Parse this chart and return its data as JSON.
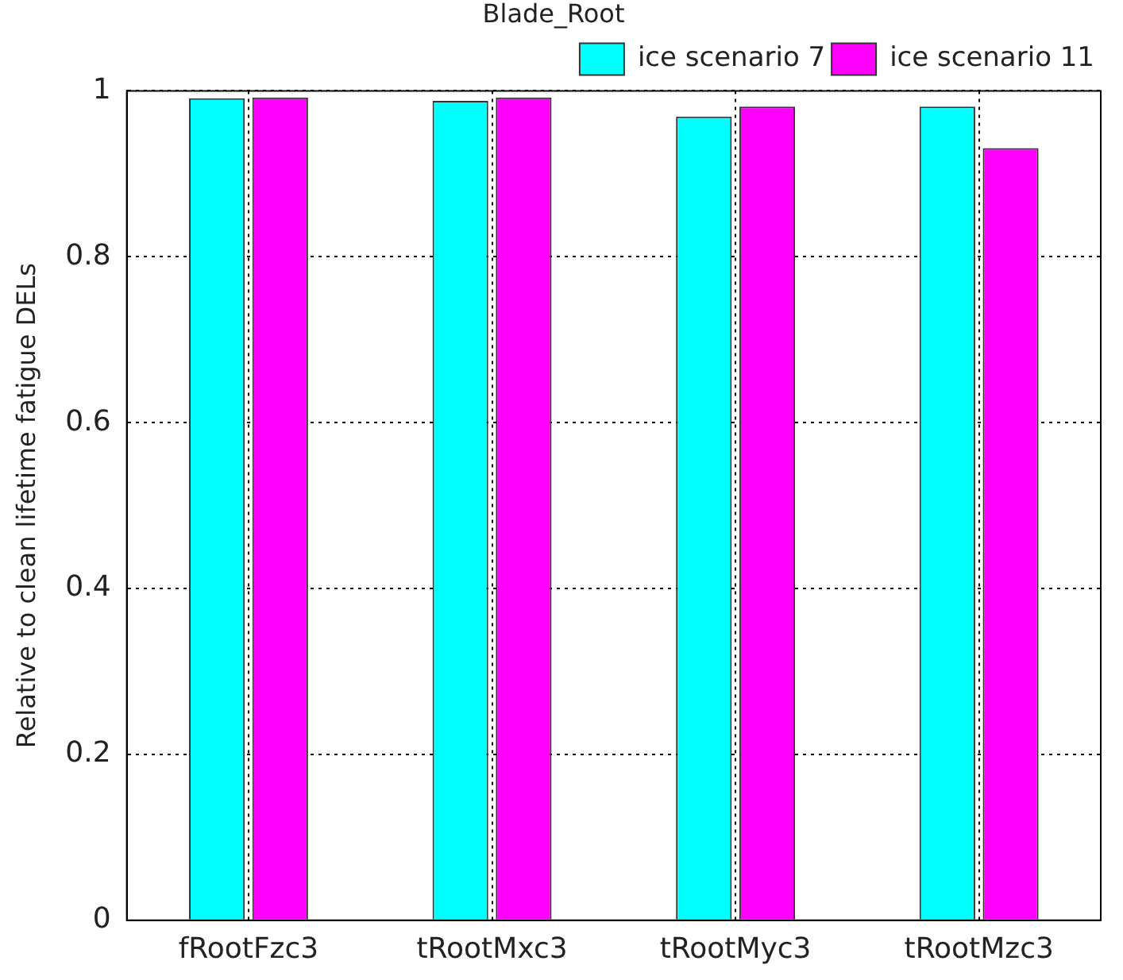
{
  "chart_data": {
    "type": "bar",
    "title": "Blade_Root",
    "ylabel": "Relative to clean lifetime fatigue DELs",
    "categories": [
      "fRootFzc3",
      "tRootMxc3",
      "tRootMyc3",
      "tRootMzc3"
    ],
    "series": [
      {
        "name": "ice scenario 7",
        "color": "#00ffff",
        "values": [
          0.991,
          0.988,
          0.969,
          0.981
        ]
      },
      {
        "name": "ice scenario 11",
        "color": "#ff00ff",
        "values": [
          0.992,
          0.992,
          0.981,
          0.931
        ]
      }
    ],
    "ylim": [
      0,
      1
    ],
    "yticks": [
      0,
      0.2,
      0.4,
      0.6,
      0.8,
      1
    ],
    "grid": true,
    "legend": "top right"
  }
}
